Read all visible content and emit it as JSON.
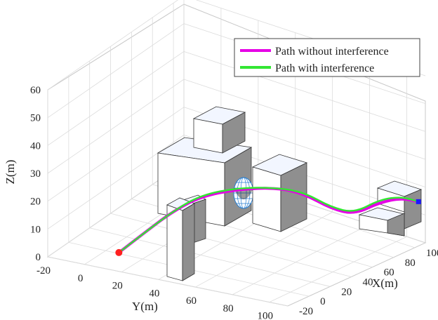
{
  "chart_data": {
    "type": "line",
    "projection": "3d",
    "xlabel": "X(m)",
    "ylabel": "Y(m)",
    "zlabel": "Z(m)",
    "x_ticks": [
      "-20",
      "0",
      "20",
      "40",
      "60",
      "80",
      "100"
    ],
    "y_ticks": [
      "-20",
      "0",
      "20",
      "40",
      "60",
      "80",
      "100"
    ],
    "z_ticks": [
      "0",
      "10",
      "20",
      "30",
      "40",
      "50",
      "60"
    ],
    "xlim": [
      -20,
      110
    ],
    "ylim": [
      -20,
      110
    ],
    "zlim": [
      0,
      60
    ],
    "grid": true,
    "legend_position": "top-right",
    "series": [
      {
        "name": "Path without interference",
        "color": "#e600e6",
        "points": [
          {
            "x": -5,
            "y": 10,
            "z": 2
          },
          {
            "x": 2,
            "y": 20,
            "z": 9
          },
          {
            "x": 10,
            "y": 30,
            "z": 16
          },
          {
            "x": 20,
            "y": 40,
            "z": 21
          },
          {
            "x": 30,
            "y": 55,
            "z": 24
          },
          {
            "x": 40,
            "y": 70,
            "z": 25
          },
          {
            "x": 48,
            "y": 80,
            "z": 23
          },
          {
            "x": 56,
            "y": 90,
            "z": 18
          },
          {
            "x": 64,
            "y": 98,
            "z": 16
          },
          {
            "x": 74,
            "y": 106,
            "z": 20
          },
          {
            "x": 84,
            "y": 112,
            "z": 21
          },
          {
            "x": 93,
            "y": 116,
            "z": 19
          }
        ]
      },
      {
        "name": "Path with interference",
        "color": "#33e633",
        "points": [
          {
            "x": -5,
            "y": 10,
            "z": 2
          },
          {
            "x": 2,
            "y": 20,
            "z": 9
          },
          {
            "x": 10,
            "y": 30,
            "z": 16
          },
          {
            "x": 20,
            "y": 40,
            "z": 21.5
          },
          {
            "x": 30,
            "y": 55,
            "z": 24.5
          },
          {
            "x": 40,
            "y": 70,
            "z": 25
          },
          {
            "x": 48,
            "y": 80,
            "z": 23.5
          },
          {
            "x": 56,
            "y": 90,
            "z": 18.5
          },
          {
            "x": 64,
            "y": 98,
            "z": 16.5
          },
          {
            "x": 74,
            "y": 106,
            "z": 21
          },
          {
            "x": 84,
            "y": 112,
            "z": 21.5
          },
          {
            "x": 93,
            "y": 116,
            "z": 19
          }
        ]
      }
    ],
    "markers": [
      {
        "name": "start",
        "color": "#ff2020"
      },
      {
        "name": "goal",
        "color": "#1a1aff"
      }
    ],
    "obstacle_color": "#eef4ff",
    "sphere_color": "#2a7fd0"
  }
}
